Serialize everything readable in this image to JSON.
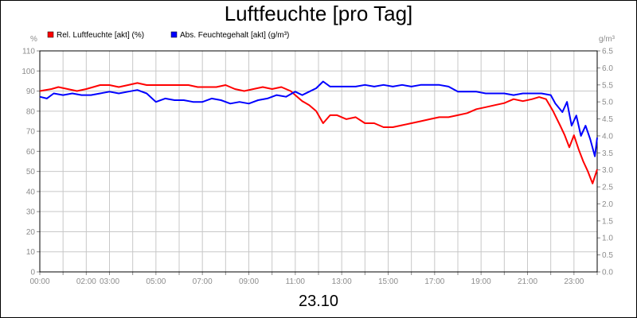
{
  "chart_data": {
    "type": "line",
    "title": "Luftfeuchte [pro Tag]",
    "date_label": "23.10",
    "y_left_unit": "%",
    "y_right_unit": "g/m³",
    "ylim_left": [
      0,
      110
    ],
    "ylim_right": [
      0,
      6.5
    ],
    "y_left_ticks": [
      "0",
      "10",
      "20",
      "30",
      "40",
      "50",
      "60",
      "70",
      "80",
      "90",
      "100",
      "110"
    ],
    "y_right_ticks": [
      "0.0",
      "0.5",
      "1.0",
      "1.5",
      "2.0",
      "2.5",
      "3.0",
      "3.5",
      "4.0",
      "4.5",
      "5.0",
      "5.5",
      "6.0",
      "6.5"
    ],
    "x_ticks": [
      {
        "h": 0,
        "label": "00:00"
      },
      {
        "h": 2,
        "label": "02:00"
      },
      {
        "h": 3,
        "label": "03:00"
      },
      {
        "h": 5,
        "label": "05:00"
      },
      {
        "h": 7,
        "label": "07:00"
      },
      {
        "h": 9,
        "label": "09:00"
      },
      {
        "h": 11,
        "label": "11:00"
      },
      {
        "h": 13,
        "label": "13:00"
      },
      {
        "h": 15,
        "label": "15:00"
      },
      {
        "h": 17,
        "label": "17:00"
      },
      {
        "h": 19,
        "label": "19:00"
      },
      {
        "h": 21,
        "label": "21:00"
      },
      {
        "h": 23,
        "label": "23:00"
      }
    ],
    "grid": true,
    "legend_position": "top-left",
    "series": [
      {
        "name": "Rel. Luftfeuchte [akt] (%)",
        "color": "#ff0000",
        "axis": "left",
        "x": [
          0,
          0.5,
          0.8,
          1.2,
          1.6,
          2.0,
          2.3,
          2.6,
          3.0,
          3.4,
          3.8,
          4.2,
          4.6,
          5.0,
          5.5,
          6.0,
          6.4,
          6.8,
          7.2,
          7.6,
          8.0,
          8.4,
          8.8,
          9.2,
          9.6,
          10.0,
          10.4,
          10.8,
          11.0,
          11.3,
          11.6,
          11.9,
          12.2,
          12.5,
          12.8,
          13.2,
          13.6,
          14.0,
          14.4,
          14.8,
          15.2,
          15.6,
          16.0,
          16.4,
          16.8,
          17.2,
          17.6,
          18.0,
          18.4,
          18.8,
          19.2,
          19.6,
          20.0,
          20.4,
          20.8,
          21.2,
          21.5,
          21.8,
          22.1,
          22.4,
          22.6,
          22.8,
          23.0,
          23.2,
          23.4,
          23.6,
          23.8,
          24.0
        ],
        "values": [
          90,
          91,
          92,
          91,
          90,
          91,
          92,
          93,
          93,
          92,
          93,
          94,
          93,
          93,
          93,
          93,
          93,
          92,
          92,
          92,
          93,
          91,
          90,
          91,
          92,
          91,
          92,
          90,
          88,
          85,
          83,
          80,
          74,
          78,
          78,
          76,
          77,
          74,
          74,
          72,
          72,
          73,
          74,
          75,
          76,
          77,
          77,
          78,
          79,
          81,
          82,
          83,
          84,
          86,
          85,
          86,
          87,
          86,
          80,
          73,
          68,
          62,
          68,
          61,
          55,
          50,
          44,
          51
        ]
      },
      {
        "name": "Abs. Feuchtegehalt [akt] (g/m³)",
        "color": "#0000ff",
        "axis": "right",
        "x": [
          0,
          0.3,
          0.6,
          1.0,
          1.4,
          1.8,
          2.2,
          2.6,
          3.0,
          3.4,
          3.8,
          4.2,
          4.6,
          5.0,
          5.4,
          5.8,
          6.2,
          6.6,
          7.0,
          7.4,
          7.8,
          8.2,
          8.6,
          9.0,
          9.4,
          9.8,
          10.2,
          10.6,
          11.0,
          11.3,
          11.6,
          11.9,
          12.2,
          12.5,
          12.8,
          13.2,
          13.6,
          14.0,
          14.4,
          14.8,
          15.2,
          15.6,
          16.0,
          16.4,
          16.8,
          17.2,
          17.6,
          18.0,
          18.4,
          18.8,
          19.2,
          19.6,
          20.0,
          20.4,
          20.8,
          21.2,
          21.6,
          22.0,
          22.2,
          22.5,
          22.7,
          22.9,
          23.1,
          23.3,
          23.5,
          23.7,
          23.9,
          24.0
        ],
        "values": [
          5.15,
          5.1,
          5.25,
          5.2,
          5.25,
          5.2,
          5.2,
          5.25,
          5.3,
          5.25,
          5.3,
          5.35,
          5.25,
          5.0,
          5.1,
          5.05,
          5.05,
          5.0,
          5.0,
          5.1,
          5.05,
          4.95,
          5.0,
          4.95,
          5.05,
          5.1,
          5.2,
          5.15,
          5.3,
          5.2,
          5.3,
          5.4,
          5.6,
          5.45,
          5.45,
          5.45,
          5.45,
          5.5,
          5.45,
          5.5,
          5.45,
          5.5,
          5.45,
          5.5,
          5.5,
          5.5,
          5.45,
          5.3,
          5.3,
          5.3,
          5.25,
          5.25,
          5.25,
          5.2,
          5.25,
          5.25,
          5.25,
          5.2,
          4.95,
          4.7,
          5.0,
          4.3,
          4.6,
          4.0,
          4.3,
          3.9,
          3.4,
          3.95
        ]
      }
    ]
  }
}
